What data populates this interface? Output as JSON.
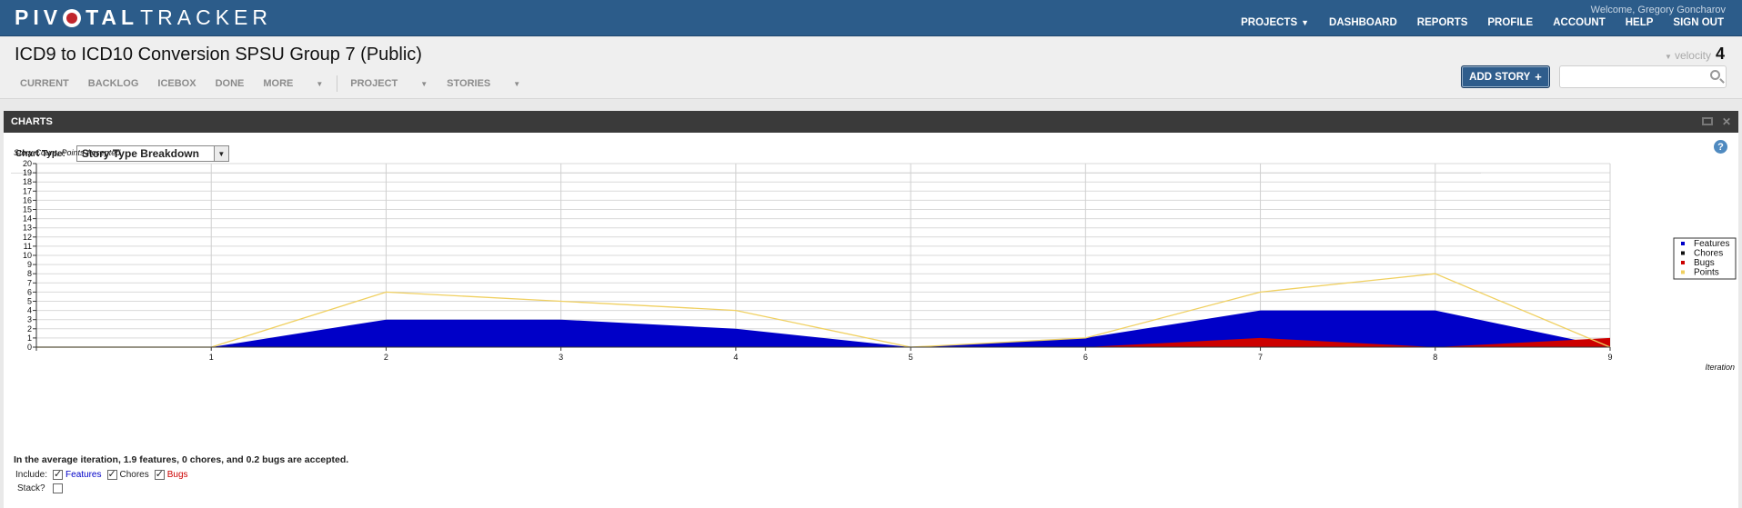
{
  "topbar": {
    "logo_a": "PIV",
    "logo_b": "TAL",
    "logo_c": "TRACKER",
    "welcome": "Welcome, Gregory Goncharov",
    "nav": {
      "projects": "PROJECTS",
      "dashboard": "DASHBOARD",
      "reports": "REPORTS",
      "profile": "PROFILE",
      "account": "ACCOUNT",
      "help": "HELP",
      "signout": "SIGN OUT"
    }
  },
  "project": {
    "title": "ICD9 to ICD10 Conversion SPSU Group 7 (Public)",
    "tabs": {
      "current": "CURRENT",
      "backlog": "BACKLOG",
      "icebox": "ICEBOX",
      "done": "DONE",
      "more": "MORE",
      "project": "PROJECT",
      "stories": "STORIES"
    },
    "velocity_label": "velocity",
    "velocity_value": "4",
    "add_story": "ADD STORY",
    "search_placeholder": ""
  },
  "panel": {
    "title": "CHARTS",
    "chart_type_label": "Chart Type:",
    "chart_type_value": "Story Type Breakdown",
    "summary": "In the average iteration, 1.9 features, 0 chores, and 0.2 bugs are accepted.",
    "include_label": "Include:",
    "features_label": "Features",
    "chores_label": "Chores",
    "bugs_label": "Bugs",
    "stack_label": "Stack?"
  },
  "chart_data": {
    "type": "area",
    "ylabel": "Story Count, Points Accepted",
    "xlabel": "Iteration",
    "x": [
      0,
      1,
      2,
      3,
      4,
      5,
      6,
      7,
      8,
      9
    ],
    "x_tick_labels": [
      "1",
      "2",
      "3",
      "4",
      "5",
      "6",
      "7",
      "8",
      "9"
    ],
    "ylim": [
      0,
      20
    ],
    "y_ticks": [
      0,
      1,
      2,
      3,
      4,
      5,
      6,
      7,
      8,
      9,
      10,
      11,
      12,
      13,
      14,
      15,
      16,
      17,
      18,
      19,
      20
    ],
    "grid": true,
    "legend_placement": "right",
    "series": [
      {
        "name": "Features",
        "color": "#0000c8",
        "kind": "area",
        "values": [
          0,
          0,
          3,
          3,
          2,
          0,
          1,
          4,
          4,
          0
        ]
      },
      {
        "name": "Chores",
        "color": "#111111",
        "kind": "area",
        "values": [
          0,
          0,
          0,
          0,
          0,
          0,
          0,
          0,
          0,
          0
        ]
      },
      {
        "name": "Bugs",
        "color": "#cc0000",
        "kind": "area",
        "values": [
          0,
          0,
          0,
          0,
          0,
          0,
          0,
          1,
          0,
          1
        ]
      },
      {
        "name": "Points",
        "color": "#f0d060",
        "kind": "line",
        "values": [
          0,
          0,
          6,
          5,
          4,
          0,
          1,
          6,
          8,
          0
        ]
      }
    ]
  }
}
